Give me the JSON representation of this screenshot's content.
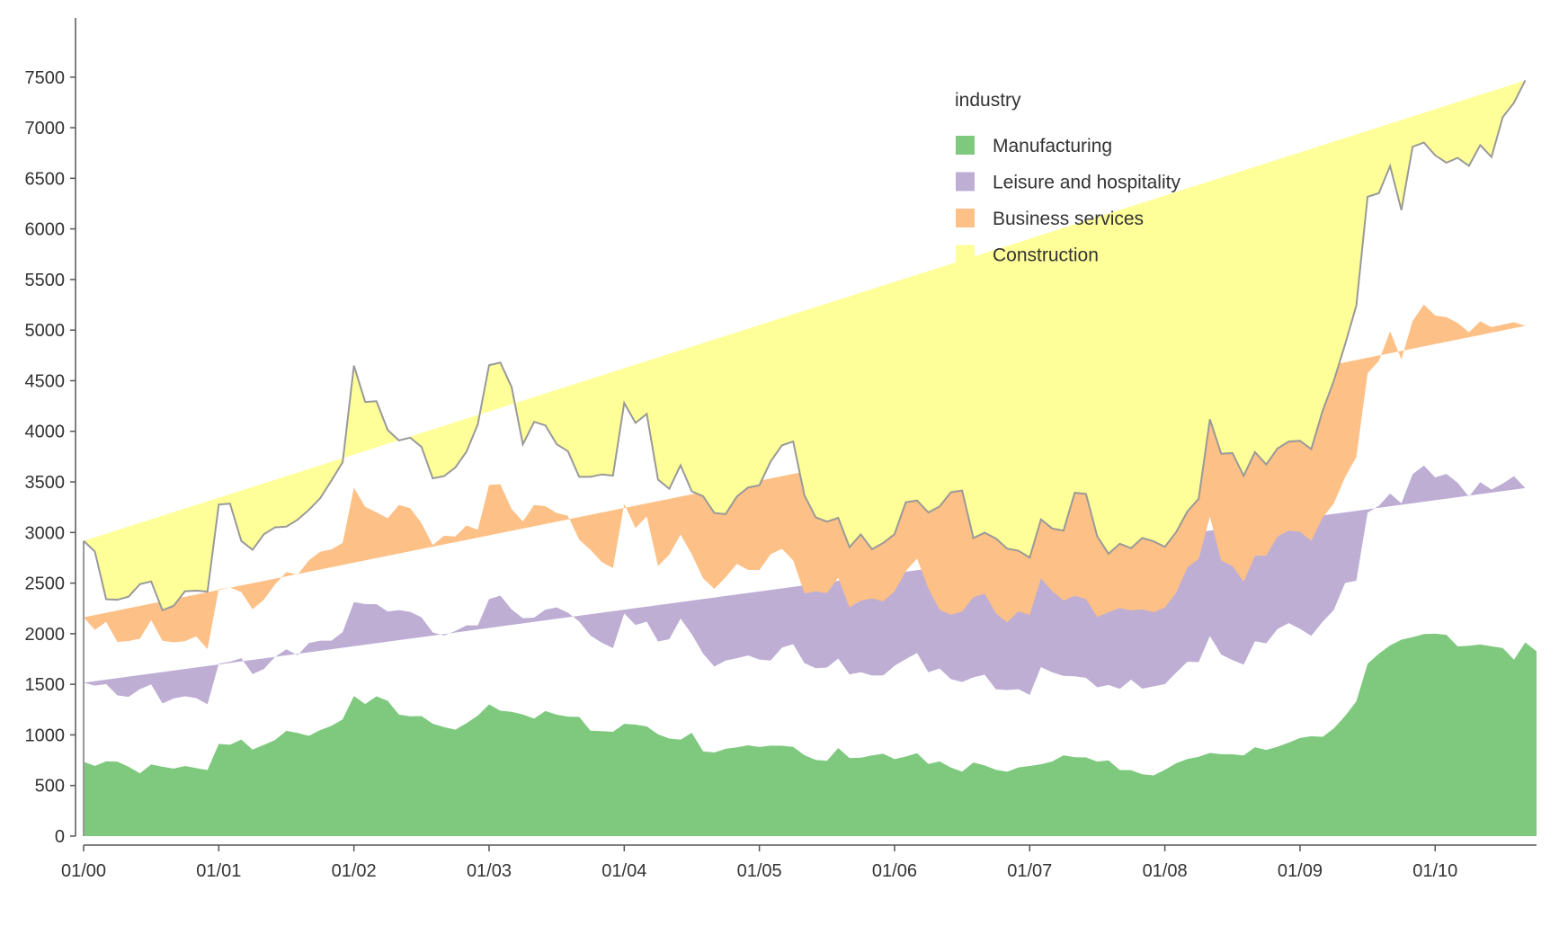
{
  "chart_data": {
    "type": "area",
    "stacked": true,
    "x_start": "2000-01",
    "x_end": "2010-02",
    "x_tick_labels": [
      "01/00",
      "01/01",
      "01/02",
      "01/03",
      "01/04",
      "01/05",
      "01/06",
      "01/07",
      "01/08",
      "01/09",
      "01/10"
    ],
    "ylim": [
      0,
      7800
    ],
    "y_ticks": [
      0,
      500,
      1000,
      1500,
      2000,
      2500,
      3000,
      3500,
      4000,
      4500,
      5000,
      5500,
      6000,
      6500,
      7000,
      7500
    ],
    "legend": {
      "title": "industry",
      "placement": "top-right"
    },
    "series": [
      {
        "name": "Manufacturing",
        "color": "#7fc97f",
        "values": [
          734,
          694,
          739,
          736,
          685,
          621,
          708,
          685,
          667,
          693,
          672,
          653,
          911,
          903,
          954,
          855,
          902,
          949,
          1040,
          1019,
          990,
          1047,
          1089,
          1154,
          1384,
          1305,
          1382,
          1337,
          1200,
          1184,
          1186,
          1110,
          1077,
          1052,
          1116,
          1191,
          1301,
          1239,
          1228,
          1202,
          1162,
          1236,
          1200,
          1180,
          1178,
          1042,
          1037,
          1031,
          1109,
          1102,
          1084,
          1006,
          964,
          953,
          1020,
          837,
          826,
          863,
          877,
          897,
          881,
          894,
          893,
          882,
          800,
          753,
          744,
          871,
          772,
          774,
          797,
          814,
          761,
          786,
          820,
          713,
          739,
          677,
          637,
          727,
          699,
          655,
          636,
          679,
          693,
          710,
          737,
          798,
          779,
          777,
          736,
          749,
          653,
          652,
          611,
          600,
          655,
          720,
          762,
          784,
          822,
          810,
          808,
          797,
          878,
          852,
          883,
          924,
          969,
          987,
          981,
          1064,
          1187,
          1331,
          1702,
          1802,
          1884,
          1941,
          1965,
          1997,
          2000,
          1989,
          1874,
          1881,
          1893,
          1876,
          1859,
          1743,
          1915,
          1826
        ]
      },
      {
        "name": "Leisure and hospitality",
        "color": "#beaed4",
        "values": [
          782,
          793,
          764,
          654,
          691,
          832,
          791,
          625,
          693,
          689,
          692,
          650,
          793,
          821,
          804,
          746,
          748,
          822,
          806,
          768,
          918,
          884,
          842,
          863,
          928,
          988,
          910,
          883,
          1033,
          1031,
          976,
          902,
          905,
          975,
          966,
          891,
          1041,
          1137,
          1012,
          951,
          997,
          1002,
          1060,
          1028,
          943,
          939,
          874,
          827,
          1091,
          983,
          1035,
          917,
          982,
          1196,
          974,
          966,
          850,
          872,
          881,
          888,
          864,
          841,
          969,
          1015,
          909,
          906,
          922,
          884,
          826,
          845,
          790,
          774,
          923,
          963,
          989,
          906,
          917,
          874,
          885,
          842,
          896,
          795,
          808,
          772,
          703,
          960,
          881,
          786,
          800,
          787,
          734,
          745,
          802,
          894,
          846,
          880,
          846,
          895,
          962,
          935,
          1155,
          985,
          931,
          898,
          1048,
          1052,
          1164,
          1180,
          1079,
          992,
          1135,
          1170,
          1314,
          1193,
          1494,
          1462,
          1502,
          1347,
          1612,
          1664,
          1545,
          1590,
          1617,
          1473,
          1605,
          1549,
          1625,
          1814,
          1524
        ]
      },
      {
        "name": "Business services",
        "color": "#fdc086",
        "values": [
          646,
          551,
          614,
          528,
          552,
          498,
          636,
          620,
          554,
          545,
          609,
          545,
          737,
          731,
          654,
          641,
          685,
          716,
          763,
          795,
          817,
          879,
          902,
          880,
          1130,
          961,
          907,
          921,
          1040,
          1025,
          929,
          863,
          986,
          934,
          987,
          944,
          1128,
          1101,
          992,
          956,
          1112,
          1022,
          933,
          957,
          808,
          849,
          797,
          791,
          1082,
          959,
          1040,
          745,
          835,
          831,
          790,
          744,
          767,
          822,
          932,
          846,
          884,
          1051,
          978,
          827,
          689,
          760,
          735,
          798,
          662,
          707,
          762,
          732,
          735,
          869,
          933,
          830,
          581,
          635,
          698,
          791,
          801,
          752,
          668,
          770,
          790,
          875,
          803,
          744,
          796,
          778,
          696,
          718,
          798,
          684,
          783,
          732,
          758,
          788,
          931,
          1021,
          1180,
          928,
          931,
          818,
          844,
          868,
          914,
          915,
          960,
          938,
          1030,
          1053,
          1046,
          1220,
          1378,
          1431,
          1603,
          1422,
          1513,
          1591,
          1599,
          1549,
          1580,
          1624,
          1588,
          1604,
          1570,
          1521,
          1603,
          1715
        ]
      },
      {
        "name": "Construction",
        "color": "#ffff99",
        "values": [
          755,
          774,
          224,
          417,
          439,
          539,
          381,
          302,
          362,
          493,
          452,
          568,
          836,
          830,
          505,
          587,
          647,
          564,
          449,
          544,
          498,
          528,
          680,
          797,
          1207,
          1036,
          1098,
          872,
          637,
          697,
          755,
          660,
          589,
          681,
          730,
          1044,
          1183,
          1202,
          1206,
          762,
          823,
          798,
          680,
          638,
          621,
          720,
          866,
          913,
          998,
          1039,
          1012,
          855,
          651,
          684,
          622,
          812,
          750,
          625,
          665,
          814,
          838,
          916,
          1021,
          1175,
          969,
          731,
          707,
          592,
          595,
          655,
          486,
          577,
          565,
          681,
          574,
          749,
          1020,
          1212,
          1195,
          586,
          602,
          739,
          729,
          599,
          566,
          585,
          619,
          690,
          1018,
          1039,
          795,
          578,
          636,
          615,
          706,
          701,
          599,
          600,
          552,
          593,
          962,
          1055,
          1115,
          1048,
          1025,
          900,
          869,
          880,
          898,
          907,
          1053,
          1212,
          1311,
          1498,
          1744,
          1658,
          1633,
          1476,
          1722,
          1601,
          1583,
          1526,
          1631,
          1645,
          1742,
          1681,
          2050,
          2169,
          2425
        ]
      }
    ]
  }
}
